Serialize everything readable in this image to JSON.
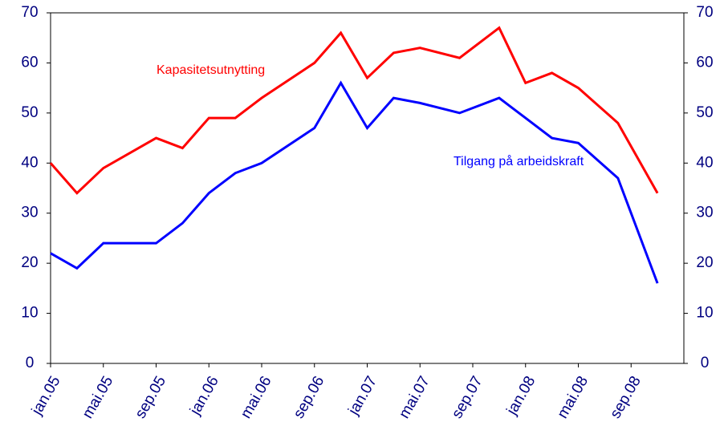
{
  "chart_data": {
    "type": "line",
    "x": [
      0,
      2,
      4,
      8,
      10,
      12,
      14,
      16,
      20,
      22,
      24,
      26,
      28,
      31,
      34,
      36,
      38,
      40,
      43,
      46
    ],
    "xlim": [
      0,
      48
    ],
    "xticks": [
      {
        "value": 0,
        "label": "jan.05"
      },
      {
        "value": 4,
        "label": "mai.05"
      },
      {
        "value": 8,
        "label": "sep.05"
      },
      {
        "value": 12,
        "label": "jan.06"
      },
      {
        "value": 16,
        "label": "mai.06"
      },
      {
        "value": 20,
        "label": "sep.06"
      },
      {
        "value": 24,
        "label": "jan.07"
      },
      {
        "value": 28,
        "label": "mai.07"
      },
      {
        "value": 32,
        "label": "sep.07"
      },
      {
        "value": 36,
        "label": "jan.08"
      },
      {
        "value": 40,
        "label": "mai.08"
      },
      {
        "value": 44,
        "label": "sep.08"
      }
    ],
    "ylim": [
      0,
      70
    ],
    "yticks": [
      0,
      10,
      20,
      30,
      40,
      50,
      60,
      70
    ],
    "y2lim": [
      0,
      70
    ],
    "y2ticks": [
      0,
      10,
      20,
      30,
      40,
      50,
      60,
      70
    ],
    "series": [
      {
        "name": "Kapasitetsutnytting",
        "color": "#ff0000",
        "values": [
          40,
          34,
          39,
          45,
          43,
          49,
          49,
          53,
          60,
          66,
          57,
          62,
          63,
          61,
          67,
          56,
          58,
          55,
          48,
          34
        ]
      },
      {
        "name": "Tilgang på arbeidskraft",
        "color": "#0000ff",
        "values": [
          22,
          19,
          24,
          24,
          28,
          34,
          38,
          40,
          47,
          56,
          47,
          53,
          52,
          50,
          53,
          49,
          45,
          44,
          37,
          16
        ]
      }
    ]
  }
}
